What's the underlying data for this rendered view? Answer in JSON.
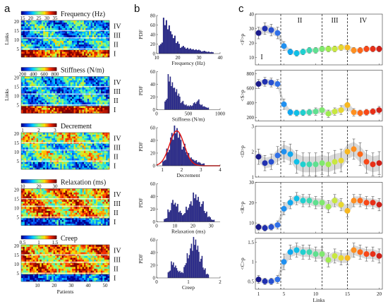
{
  "panel_letters": [
    "a",
    "b",
    "c"
  ],
  "chart_data": [
    {
      "panel": "a",
      "type": "heatmap",
      "xlabel": "Patients",
      "ylabel": "Links",
      "xticks": [
        10,
        20,
        30,
        40,
        50
      ],
      "yticks": [
        5,
        10,
        15,
        20
      ],
      "xrange": [
        1,
        52
      ],
      "yrange": [
        1,
        20
      ],
      "group_labels": [
        "IV",
        "III",
        "II",
        "I"
      ],
      "group_bounds": [
        [
          1,
          4
        ],
        [
          5,
          10
        ],
        [
          11,
          14
        ],
        [
          15,
          20
        ]
      ],
      "colormap": [
        "#00008f",
        "#0050ff",
        "#00d0ff",
        "#80ff80",
        "#ffe000",
        "#ff3000",
        "#800000"
      ],
      "maps": [
        {
          "title": "Frequency (Hz)",
          "cbar_ticks": [
            "15",
            "20",
            "25",
            "30",
            "35"
          ],
          "group_level": [
            0.85,
            0.35,
            0.3,
            0.3
          ]
        },
        {
          "title": "Stiffness (N/m)",
          "cbar_ticks": [
            "200",
            "400",
            "600",
            "800"
          ],
          "group_level": [
            0.9,
            0.3,
            0.25,
            0.3
          ]
        },
        {
          "title": "Decrement",
          "cbar_ticks": [
            "1",
            "2",
            "3"
          ],
          "group_level": [
            0.3,
            0.5,
            0.4,
            0.55
          ]
        },
        {
          "title": "Relaxation (ms)",
          "cbar_ticks": [
            "10",
            "20",
            "30"
          ],
          "group_level": [
            0.15,
            0.7,
            0.7,
            0.7
          ]
        },
        {
          "title": "Creep",
          "cbar_ticks": [
            "0.5",
            "1",
            "1.5"
          ],
          "group_level": [
            0.15,
            0.75,
            0.7,
            0.75
          ]
        }
      ]
    },
    {
      "panel": "b",
      "type": "bar",
      "ylabel": "PDF",
      "histograms": [
        {
          "xlabel": "Frequency (Hz)",
          "xticks": [
            "10",
            "20",
            "30",
            "40"
          ],
          "xlim": [
            10,
            40
          ],
          "ylim": [
            0,
            80
          ],
          "yticks": [
            "0",
            "20",
            "40",
            "60",
            "80"
          ],
          "bins": [
            12,
            14,
            16,
            18,
            20,
            22,
            24,
            26,
            28,
            30,
            32,
            34,
            36
          ],
          "values": [
            20,
            70,
            55,
            35,
            22,
            14,
            12,
            10,
            8,
            7,
            5,
            4,
            3
          ]
        },
        {
          "xlabel": "Stiffness (N/m)",
          "xticks": [
            "0",
            "500",
            "1000"
          ],
          "xlim": [
            0,
            1000
          ],
          "ylim": [
            0,
            60
          ],
          "yticks": [
            "0",
            "20",
            "40",
            "60"
          ],
          "bins": [
            150,
            200,
            250,
            300,
            350,
            400,
            450,
            500,
            550,
            600,
            650,
            700,
            750,
            800
          ],
          "values": [
            15,
            52,
            40,
            30,
            22,
            12,
            8,
            6,
            6,
            10,
            14,
            8,
            5,
            3
          ]
        },
        {
          "xlabel": "Decrement",
          "xticks": [
            "1",
            "2",
            "3",
            "4"
          ],
          "xlim": [
            0.7,
            4
          ],
          "ylim": [
            0,
            60
          ],
          "yticks": [
            "0",
            "20",
            "40",
            "60"
          ],
          "bins": [
            1.1,
            1.3,
            1.5,
            1.7,
            1.9,
            2.1,
            2.3,
            2.5,
            2.7,
            2.9,
            3.1
          ],
          "values": [
            8,
            25,
            48,
            55,
            44,
            30,
            20,
            12,
            8,
            5,
            3
          ],
          "fit_curve": true
        },
        {
          "xlabel": "Relaxation (ms)",
          "xticks": [
            "0",
            "10",
            "20",
            "30"
          ],
          "xlim": [
            0,
            35
          ],
          "ylim": [
            0,
            60
          ],
          "yticks": [
            "0",
            "20",
            "40",
            "60"
          ],
          "bins": [
            5,
            7,
            9,
            11,
            13,
            15,
            17,
            19,
            21,
            23,
            25,
            27,
            29,
            31
          ],
          "values": [
            5,
            18,
            32,
            26,
            15,
            12,
            22,
            30,
            40,
            34,
            28,
            16,
            8,
            3
          ]
        },
        {
          "xlabel": "Creep",
          "xticks": [
            "0",
            "1",
            "2"
          ],
          "xlim": [
            0,
            2
          ],
          "ylim": [
            0,
            60
          ],
          "yticks": [
            "0",
            "20",
            "40",
            "60"
          ],
          "bins": [
            0.4,
            0.5,
            0.6,
            0.7,
            0.8,
            0.9,
            1.0,
            1.1,
            1.2,
            1.3,
            1.4,
            1.5,
            1.6
          ],
          "values": [
            10,
            24,
            18,
            10,
            8,
            20,
            36,
            50,
            56,
            44,
            30,
            15,
            6
          ]
        }
      ]
    },
    {
      "panel": "c",
      "type": "scatter",
      "xlabel": "Links",
      "xticks": [
        1,
        5,
        10,
        15,
        20
      ],
      "xlim": [
        0.5,
        20.5
      ],
      "dividers": [
        4.5,
        11,
        15
      ],
      "region_labels": [
        "I",
        "II",
        "III",
        "IV"
      ],
      "region_x": [
        1.5,
        7.5,
        13,
        17.5
      ],
      "point_colors": [
        "#1a1a8c",
        "#2030b0",
        "#2850d0",
        "#3070e8",
        "#2090f0",
        "#10a8f0",
        "#10c0e8",
        "#20d0d0",
        "#40d8b0",
        "#60e090",
        "#80e870",
        "#a0ec50",
        "#c8e840",
        "#e8d830",
        "#f8b820",
        "#ff9020",
        "#ff6818",
        "#f84818",
        "#e83018",
        "#d02018"
      ],
      "series": [
        {
          "ylabel": "<F>p",
          "ylim": [
            5,
            40
          ],
          "yticks": [
            "10",
            "20",
            "30",
            "40"
          ],
          "y": [
            27,
            30,
            29,
            27,
            18,
            14,
            13,
            14,
            15,
            15,
            16,
            16,
            16,
            17,
            17,
            15,
            15,
            16,
            16,
            16
          ],
          "err": [
            4,
            4,
            4,
            4,
            3,
            2,
            2,
            2,
            2,
            2,
            2,
            2,
            2,
            2,
            3,
            2,
            2,
            2,
            2,
            2
          ]
        },
        {
          "ylabel": "<S>p",
          "ylim": [
            150,
            850
          ],
          "yticks": [
            "200",
            "400",
            "600",
            "800"
          ],
          "y": [
            660,
            690,
            680,
            660,
            380,
            270,
            260,
            265,
            270,
            280,
            300,
            250,
            280,
            300,
            370,
            270,
            260,
            270,
            280,
            300
          ],
          "err": [
            60,
            60,
            60,
            60,
            70,
            40,
            40,
            40,
            40,
            50,
            60,
            50,
            50,
            60,
            80,
            50,
            40,
            40,
            40,
            50
          ]
        },
        {
          "ylabel": "<D>p",
          "ylim": [
            1,
            3
          ],
          "yticks": [
            "1",
            "2",
            "3"
          ],
          "y": [
            1.8,
            1.55,
            1.6,
            1.85,
            2.0,
            1.9,
            1.6,
            1.5,
            1.5,
            1.5,
            1.55,
            1.5,
            1.6,
            1.65,
            2.0,
            2.1,
            1.9,
            1.6,
            1.5,
            1.55
          ],
          "err": [
            0.3,
            0.3,
            0.3,
            0.35,
            0.4,
            0.4,
            0.45,
            0.45,
            0.45,
            0.45,
            0.45,
            0.45,
            0.45,
            0.45,
            0.4,
            0.4,
            0.45,
            0.45,
            0.45,
            0.45
          ]
        },
        {
          "ylabel": "<R>p",
          "ylim": [
            5,
            30
          ],
          "yticks": [
            "10",
            "20",
            "30"
          ],
          "y": [
            8,
            7.5,
            8,
            9,
            17,
            20,
            22,
            21,
            21,
            20,
            20,
            18,
            21,
            19,
            16,
            21,
            21,
            20,
            20,
            19
          ],
          "err": [
            1.5,
            1.5,
            1.5,
            2,
            3,
            3,
            3,
            3,
            3,
            3,
            3,
            3,
            3,
            3,
            3,
            3,
            3,
            3,
            3,
            3
          ]
        },
        {
          "ylabel": "<C>p",
          "ylim": [
            0.3,
            1.6
          ],
          "yticks": [
            "0.5",
            "1",
            "1.5"
          ],
          "y": [
            0.55,
            0.5,
            0.5,
            0.55,
            1.0,
            1.25,
            1.3,
            1.25,
            1.25,
            1.2,
            1.2,
            1.05,
            1.15,
            1.1,
            1.1,
            1.3,
            1.25,
            1.2,
            1.2,
            1.15
          ],
          "err": [
            0.1,
            0.08,
            0.08,
            0.1,
            0.2,
            0.18,
            0.18,
            0.18,
            0.18,
            0.18,
            0.18,
            0.18,
            0.18,
            0.18,
            0.18,
            0.18,
            0.18,
            0.18,
            0.18,
            0.18
          ]
        }
      ]
    }
  ]
}
